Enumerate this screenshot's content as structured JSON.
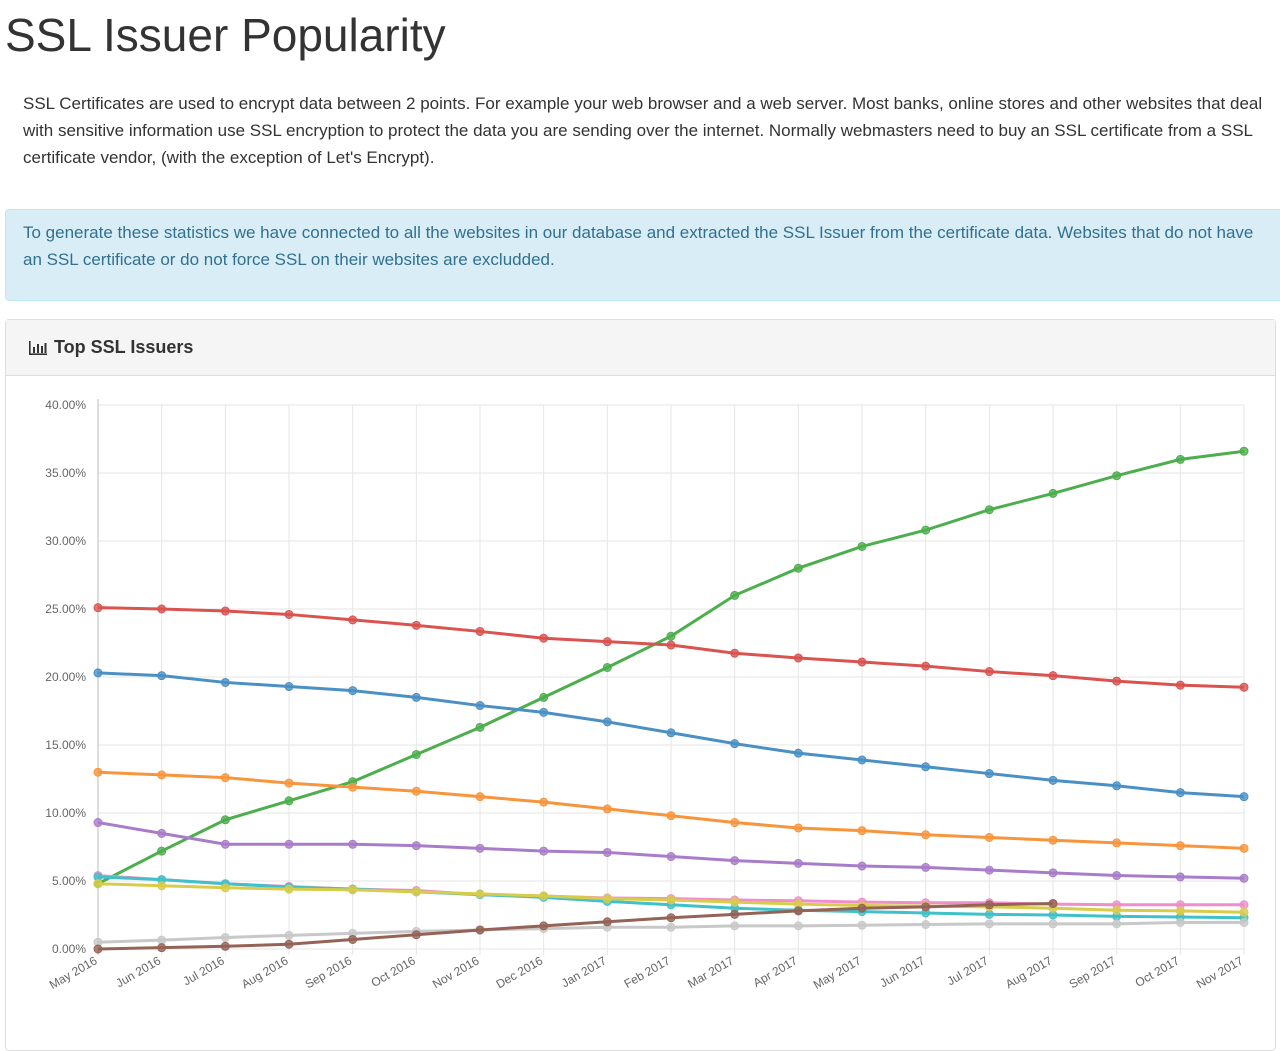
{
  "title": "SSL Issuer Popularity",
  "intro": "SSL Certificates are used to encrypt data between 2 points. For example your web browser and a web server. Most banks, online stores and other websites that deal with sensitive information use SSL encryption to protect the data you are sending over the internet. Normally webmasters need to buy an SSL certificate from a SSL certificate vendor, (with the exception of Let's Encrypt).",
  "notice": "To generate these statistics we have connected to all the websites in our database and extracted the SSL Issuer from the certificate data. Websites that do not have an SSL certificate or do not force SSL on their websites are excludded.",
  "panel_title": "Top SSL Issuers",
  "chart_data": {
    "type": "line",
    "categories": [
      "May 2016",
      "Jun 2016",
      "Jul 2016",
      "Aug 2016",
      "Sep 2016",
      "Oct 2016",
      "Nov 2016",
      "Dec 2016",
      "Jan 2017",
      "Feb 2017",
      "Mar 2017",
      "Apr 2017",
      "May 2017",
      "Jun 2017",
      "Jul 2017",
      "Aug 2017",
      "Sep 2017",
      "Oct 2017",
      "Nov 2017"
    ],
    "ylim": [
      0,
      40
    ],
    "yticks": [
      {
        "value": 0,
        "label": "0.00%"
      },
      {
        "value": 5,
        "label": "5.00%"
      },
      {
        "value": 10,
        "label": "10.00%"
      },
      {
        "value": 15,
        "label": "15.00%"
      },
      {
        "value": 20,
        "label": "20.00%"
      },
      {
        "value": 25,
        "label": "25.00%"
      },
      {
        "value": 30,
        "label": "30.00%"
      },
      {
        "value": 35,
        "label": "35.00%"
      },
      {
        "value": 40,
        "label": "40.00%"
      }
    ],
    "grid": true,
    "series": [
      {
        "color": "#4cae4c",
        "values": [
          4.8,
          7.2,
          9.5,
          10.9,
          12.3,
          14.3,
          16.3,
          18.5,
          20.7,
          23.0,
          26.0,
          28.0,
          29.6,
          30.8,
          32.3,
          33.5,
          34.8,
          36.0,
          36.6
        ]
      },
      {
        "color": "#d9534f",
        "values": [
          25.1,
          25.0,
          24.85,
          24.6,
          24.2,
          23.8,
          23.35,
          22.85,
          22.6,
          22.35,
          21.75,
          21.4,
          21.1,
          20.8,
          20.4,
          20.1,
          19.7,
          19.4,
          19.25
        ]
      },
      {
        "color": "#4a90c4",
        "values": [
          20.3,
          20.1,
          19.6,
          19.3,
          19.0,
          18.5,
          17.9,
          17.4,
          16.7,
          15.9,
          15.1,
          14.4,
          13.9,
          13.4,
          12.9,
          12.4,
          12.0,
          11.5,
          11.2
        ]
      },
      {
        "color": "#f7953d",
        "values": [
          13.0,
          12.8,
          12.6,
          12.2,
          11.9,
          11.6,
          11.2,
          10.8,
          10.3,
          9.8,
          9.3,
          8.9,
          8.7,
          8.4,
          8.2,
          8.0,
          7.8,
          7.6,
          7.4
        ]
      },
      {
        "color": "#a97cc9",
        "values": [
          9.3,
          8.5,
          7.7,
          7.7,
          7.7,
          7.6,
          7.4,
          7.2,
          7.1,
          6.8,
          6.5,
          6.3,
          6.1,
          6.0,
          5.8,
          5.6,
          5.4,
          5.3,
          5.2
        ]
      },
      {
        "color": "#ef8ecb",
        "values": [
          5.4,
          5.1,
          4.8,
          4.6,
          4.4,
          4.3,
          4.0,
          3.9,
          3.75,
          3.7,
          3.6,
          3.55,
          3.45,
          3.4,
          3.4,
          3.3,
          3.25,
          3.25,
          3.25
        ]
      },
      {
        "color": "#3fc1c9",
        "values": [
          5.3,
          5.1,
          4.8,
          4.55,
          4.4,
          4.2,
          4.0,
          3.8,
          3.5,
          3.25,
          3.0,
          2.85,
          2.75,
          2.65,
          2.55,
          2.5,
          2.4,
          2.35,
          2.3
        ]
      },
      {
        "color": "#d8cc4a",
        "values": [
          4.8,
          4.65,
          4.5,
          4.4,
          4.35,
          4.2,
          4.05,
          3.9,
          3.7,
          3.6,
          3.45,
          3.3,
          3.2,
          3.15,
          3.1,
          3.0,
          2.85,
          2.8,
          2.7
        ]
      },
      {
        "color": "#c8c8c8",
        "values": [
          0.5,
          0.65,
          0.85,
          1.0,
          1.15,
          1.3,
          1.4,
          1.5,
          1.6,
          1.6,
          1.7,
          1.7,
          1.75,
          1.8,
          1.85,
          1.85,
          1.85,
          1.95,
          1.95
        ]
      },
      {
        "color": "#946355",
        "values": [
          0.0,
          0.1,
          0.2,
          0.35,
          0.7,
          1.05,
          1.4,
          1.7,
          2.0,
          2.3,
          2.55,
          2.8,
          3.0,
          3.1,
          3.25,
          3.35,
          null,
          null,
          null
        ]
      }
    ]
  }
}
